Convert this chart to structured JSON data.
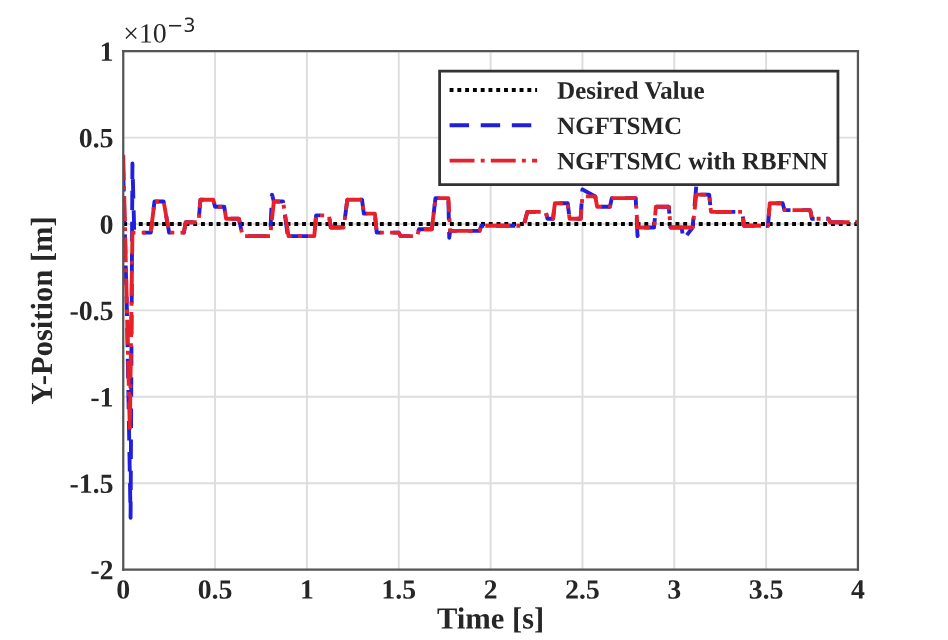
{
  "chart_data": {
    "type": "line",
    "xlabel": "Time [s]",
    "ylabel": "Y-Position [m]",
    "annotations": [
      "×10$^{−3}$"
    ],
    "xlim": [
      0,
      4
    ],
    "xticks": [
      0,
      0.5,
      1,
      1.5,
      2,
      2.5,
      3,
      3.5,
      4
    ],
    "ylim": [
      -2,
      1
    ],
    "yticks": [
      -2,
      -1.5,
      -1,
      -0.5,
      0,
      0.5,
      1
    ],
    "grid": true,
    "legend": "top right",
    "marker": "none",
    "series": [
      {
        "name": "Desired Value",
        "color": "#000000",
        "line_style": "dotted",
        "x": [
          0,
          4
        ],
        "values": [
          0,
          0
        ]
      },
      {
        "name": "NGFTSMC",
        "color": "#1f1fdc",
        "line_style": "dashed",
        "x": [
          0,
          0.02,
          0.04,
          0.05,
          0.06,
          0.15,
          0.17,
          0.22,
          0.25,
          0.33,
          0.34,
          0.41,
          0.42,
          0.49,
          0.5,
          0.55,
          0.56,
          0.63,
          0.65,
          0.8,
          0.81,
          0.82,
          0.87,
          0.9,
          0.91,
          1.04,
          1.05,
          1.12,
          1.13,
          1.2,
          1.22,
          1.3,
          1.31,
          1.37,
          1.38,
          1.5,
          1.51,
          1.6,
          1.61,
          1.68,
          1.7,
          1.77,
          1.775,
          1.78,
          1.94,
          1.95,
          2.18,
          2.2,
          2.3,
          2.31,
          2.34,
          2.35,
          2.42,
          2.43,
          2.49,
          2.5,
          2.57,
          2.58,
          2.65,
          2.66,
          2.79,
          2.8,
          2.81,
          2.89,
          2.9,
          2.97,
          2.98,
          3.04,
          3.05,
          3.1,
          3.12,
          3.13,
          3.19,
          3.2,
          3.37,
          3.38,
          3.51,
          3.52,
          3.59,
          3.6,
          3.74,
          3.75,
          3.84,
          3.85,
          4
        ],
        "values": [
          0.3,
          -0.5,
          -1.7,
          0.35,
          -0.05,
          -0.05,
          0.13,
          0.13,
          -0.05,
          -0.05,
          0.01,
          0.01,
          0.14,
          0.14,
          0.1,
          0.1,
          0.03,
          0.03,
          -0.07,
          -0.07,
          0.17,
          0.13,
          0.13,
          -0.1,
          -0.07,
          -0.07,
          0.05,
          0.05,
          -0.02,
          -0.02,
          0.14,
          0.14,
          0.06,
          0.06,
          -0.05,
          -0.05,
          -0.07,
          -0.07,
          -0.03,
          -0.03,
          0.15,
          0.15,
          -0.08,
          -0.04,
          -0.04,
          -0.01,
          -0.01,
          0.07,
          0.07,
          0.03,
          0.03,
          0.12,
          0.12,
          0.03,
          0.03,
          0.2,
          0.16,
          0.1,
          0.1,
          0.15,
          0.15,
          -0.07,
          -0.02,
          -0.02,
          0.1,
          0.1,
          -0.02,
          -0.02,
          -0.09,
          -0.02,
          0.22,
          0.17,
          0.17,
          0.07,
          0.07,
          -0.01,
          -0.01,
          0.12,
          0.12,
          0.08,
          0.08,
          0.03,
          0.03,
          0.01,
          0.01
        ]
      },
      {
        "name": "NGFTSMC with RBFNN",
        "color": "#e8202a",
        "line_style": "dashdot",
        "x": [
          0,
          0.036,
          0.05,
          0.15,
          0.17,
          0.22,
          0.25,
          0.33,
          0.34,
          0.41,
          0.42,
          0.49,
          0.5,
          0.55,
          0.56,
          0.63,
          0.65,
          0.8,
          0.82,
          0.87,
          0.9,
          1.04,
          1.05,
          1.12,
          1.13,
          1.2,
          1.22,
          1.3,
          1.31,
          1.37,
          1.38,
          1.5,
          1.51,
          1.6,
          1.61,
          1.68,
          1.7,
          1.77,
          1.78,
          1.94,
          1.95,
          2.18,
          2.2,
          2.3,
          2.31,
          2.34,
          2.35,
          2.42,
          2.43,
          2.49,
          2.5,
          2.57,
          2.58,
          2.65,
          2.66,
          2.79,
          2.8,
          2.89,
          2.9,
          2.97,
          2.98,
          3.1,
          3.12,
          3.19,
          3.2,
          3.37,
          3.38,
          3.51,
          3.52,
          3.59,
          3.6,
          3.74,
          3.75,
          3.84,
          3.85,
          4
        ],
        "values": [
          0.4,
          -1.2,
          -0.05,
          -0.05,
          0.13,
          0.13,
          -0.05,
          -0.05,
          0.01,
          0.01,
          0.14,
          0.14,
          0.1,
          0.1,
          0.03,
          0.03,
          -0.07,
          -0.07,
          0.13,
          0.13,
          -0.07,
          -0.07,
          0.05,
          0.05,
          -0.02,
          -0.02,
          0.14,
          0.14,
          0.06,
          0.06,
          -0.05,
          -0.05,
          -0.07,
          -0.07,
          -0.03,
          -0.03,
          0.15,
          0.15,
          -0.04,
          -0.04,
          -0.01,
          -0.01,
          0.07,
          0.07,
          0.03,
          0.03,
          0.12,
          0.12,
          0.03,
          0.03,
          0.16,
          0.16,
          0.1,
          0.1,
          0.15,
          0.15,
          -0.02,
          -0.02,
          0.1,
          0.1,
          -0.02,
          -0.02,
          0.17,
          0.17,
          0.07,
          0.07,
          -0.01,
          -0.01,
          0.12,
          0.12,
          0.08,
          0.08,
          0.03,
          0.03,
          0.01,
          0.01
        ]
      }
    ]
  }
}
